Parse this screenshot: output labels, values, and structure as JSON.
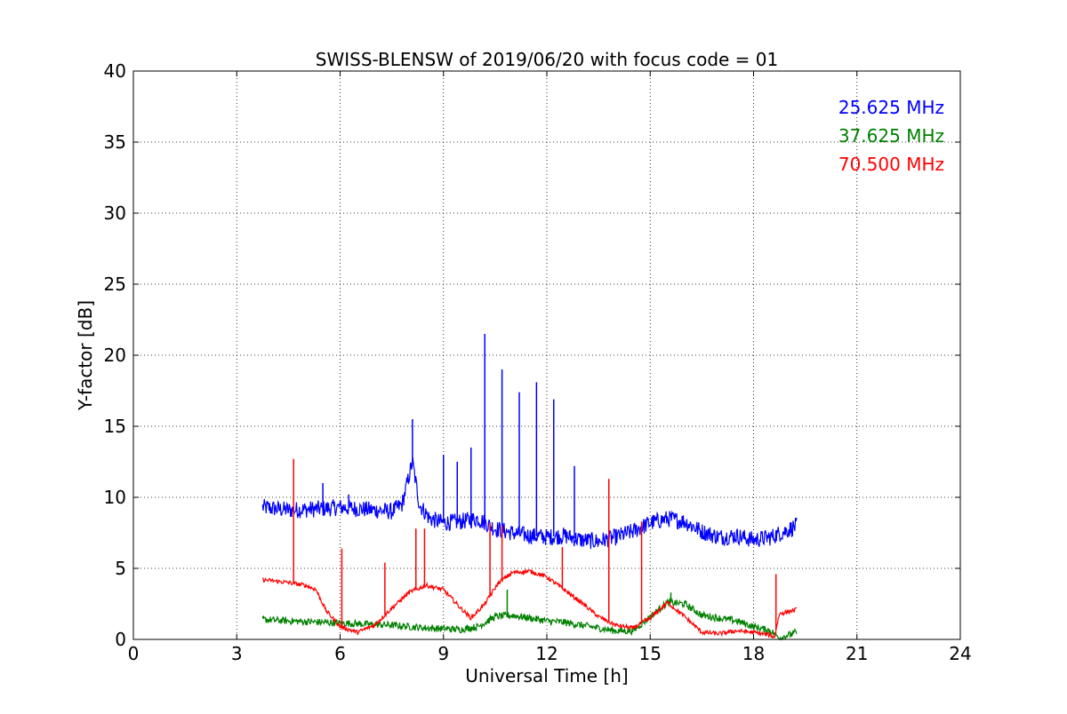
{
  "chart_data": {
    "type": "line",
    "title": "SWISS-BLENSW of 2019/06/20 with focus code = 01",
    "xlabel": "Universal Time [h]",
    "ylabel": "Y-factor [dB]",
    "xlim": [
      0,
      24
    ],
    "ylim": [
      0,
      40
    ],
    "xticks": [
      0,
      3,
      6,
      9,
      12,
      15,
      18,
      21,
      24
    ],
    "yticks": [
      0,
      5,
      10,
      15,
      20,
      25,
      30,
      35,
      40
    ],
    "grid": true,
    "legend_position": "top-right",
    "series": [
      {
        "name": "25.625 MHz",
        "color": "#0000ff",
        "noise": 0.6,
        "x": [
          3.75,
          4.5,
          5.5,
          6.0,
          7.0,
          7.5,
          7.8,
          8.0,
          8.1,
          8.3,
          8.6,
          9.0,
          9.5,
          10.0,
          10.5,
          11.0,
          11.5,
          12.0,
          12.5,
          13.0,
          13.5,
          14.0,
          14.5,
          15.0,
          15.5,
          16.0,
          16.5,
          17.0,
          17.5,
          18.0,
          18.5,
          19.0,
          19.25
        ],
        "y": [
          9.3,
          9.1,
          9.2,
          9.3,
          9.1,
          9.0,
          9.5,
          11.5,
          12.5,
          9.5,
          8.5,
          8.2,
          8.3,
          8.5,
          7.8,
          7.5,
          7.3,
          7.2,
          7.3,
          7.0,
          6.9,
          7.2,
          7.6,
          8.2,
          8.5,
          8.3,
          7.6,
          7.2,
          7.3,
          7.0,
          7.2,
          7.7,
          8.0
        ],
        "spikes": [
          {
            "x": 5.5,
            "y": 11.0
          },
          {
            "x": 6.25,
            "y": 10.2
          },
          {
            "x": 8.1,
            "y": 15.5
          },
          {
            "x": 9.0,
            "y": 13.0
          },
          {
            "x": 9.4,
            "y": 12.5
          },
          {
            "x": 9.8,
            "y": 13.5
          },
          {
            "x": 10.2,
            "y": 21.5
          },
          {
            "x": 10.7,
            "y": 19.0
          },
          {
            "x": 11.2,
            "y": 17.4
          },
          {
            "x": 11.7,
            "y": 18.1
          },
          {
            "x": 12.2,
            "y": 16.9
          },
          {
            "x": 12.8,
            "y": 12.2
          }
        ]
      },
      {
        "name": "37.625 MHz",
        "color": "#008000",
        "noise": 0.25,
        "x": [
          3.75,
          4.5,
          5.5,
          6.5,
          7.5,
          8.5,
          9.5,
          10.0,
          10.5,
          11.0,
          11.5,
          12.0,
          12.5,
          13.0,
          13.5,
          14.0,
          14.5,
          15.0,
          15.5,
          16.0,
          16.5,
          17.0,
          17.5,
          18.0,
          18.5,
          18.75,
          19.25
        ],
        "y": [
          1.4,
          1.3,
          1.2,
          1.1,
          1.0,
          0.8,
          0.7,
          0.9,
          1.6,
          1.7,
          1.5,
          1.3,
          1.2,
          1.0,
          0.8,
          0.6,
          0.6,
          1.6,
          2.6,
          2.5,
          1.7,
          1.5,
          1.3,
          0.9,
          0.6,
          0.1,
          0.5
        ],
        "spikes": [
          {
            "x": 10.85,
            "y": 3.5
          },
          {
            "x": 15.6,
            "y": 3.3
          }
        ]
      },
      {
        "name": "70.500 MHz",
        "color": "#ff0000",
        "noise": 0.15,
        "x": [
          3.75,
          4.5,
          5.0,
          5.3,
          5.6,
          6.0,
          6.5,
          7.0,
          7.5,
          8.0,
          8.5,
          9.0,
          9.5,
          9.8,
          10.2,
          10.6,
          11.0,
          11.5,
          12.0,
          12.5,
          13.0,
          13.5,
          14.0,
          14.5,
          15.0,
          15.5,
          16.0,
          16.5,
          17.0,
          17.5,
          18.0,
          18.5,
          18.6,
          18.75,
          19.25
        ],
        "y": [
          4.2,
          4.0,
          3.8,
          3.5,
          2.0,
          0.9,
          0.5,
          1.0,
          2.2,
          3.3,
          3.8,
          3.5,
          2.2,
          1.5,
          2.5,
          4.0,
          4.7,
          4.8,
          4.4,
          3.5,
          2.6,
          1.6,
          1.0,
          0.8,
          1.5,
          2.6,
          1.6,
          0.5,
          0.4,
          0.6,
          0.5,
          0.3,
          0.1,
          1.8,
          2.1
        ],
        "spikes": [
          {
            "x": 4.65,
            "y": 12.7
          },
          {
            "x": 6.05,
            "y": 6.4
          },
          {
            "x": 7.3,
            "y": 5.4
          },
          {
            "x": 8.2,
            "y": 7.8
          },
          {
            "x": 8.45,
            "y": 7.8
          },
          {
            "x": 10.35,
            "y": 8.2
          },
          {
            "x": 10.7,
            "y": 8.0
          },
          {
            "x": 12.45,
            "y": 6.5
          },
          {
            "x": 13.8,
            "y": 11.3
          },
          {
            "x": 14.75,
            "y": 8.3
          },
          {
            "x": 18.65,
            "y": 4.6
          }
        ]
      }
    ]
  }
}
